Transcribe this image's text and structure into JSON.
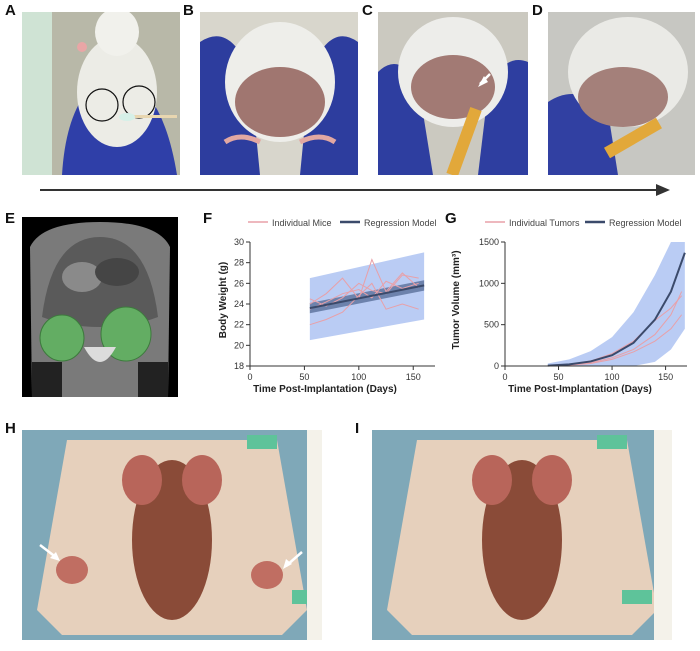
{
  "figure": {
    "panels": [
      "A",
      "B",
      "C",
      "D",
      "E",
      "F",
      "G",
      "H",
      "I"
    ]
  },
  "chart_data": [
    {
      "type": "line",
      "panel": "F",
      "xlabel": "Time Post-Implantation (Days)",
      "ylabel": "Body Weight (g)",
      "xlim": [
        0,
        170
      ],
      "ylim": [
        18,
        30
      ],
      "xticks": [
        0,
        50,
        100,
        150
      ],
      "yticks": [
        18,
        20,
        22,
        24,
        26,
        28,
        30
      ],
      "legend": [
        "Individual Mice",
        "Regression Model"
      ],
      "legend_position": "top",
      "colors": {
        "individual": "#e8a0a8",
        "regression": "#3b4a6b",
        "band": "#9db7f0",
        "ci": "#5a6f9a"
      },
      "series": [
        {
          "name": "Individual Mice",
          "x": [
            55,
            70,
            85,
            100,
            112,
            125,
            140,
            155
          ],
          "y": [
            24.0,
            25.0,
            26.5,
            24.5,
            28.3,
            25.2,
            27.0,
            25.6
          ]
        },
        {
          "name": "Individual Mice",
          "x": [
            55,
            70,
            85,
            100,
            112,
            125,
            140,
            155
          ],
          "y": [
            22.0,
            22.5,
            23.2,
            24.8,
            26.0,
            23.5,
            24.0,
            23.5
          ]
        },
        {
          "name": "Individual Mice",
          "x": [
            55,
            70,
            85,
            100,
            112,
            125,
            140,
            155
          ],
          "y": [
            23.5,
            24.2,
            25.0,
            25.4,
            24.6,
            26.2,
            25.5,
            26.0
          ]
        },
        {
          "name": "Individual Mice",
          "x": [
            55,
            70,
            85,
            100,
            112,
            125,
            140,
            155
          ],
          "y": [
            24.5,
            23.8,
            24.6,
            26.0,
            25.3,
            25.0,
            26.8,
            26.5
          ]
        }
      ],
      "regression": {
        "x": [
          55,
          160
        ],
        "y": [
          23.6,
          25.8
        ]
      },
      "prediction_band": {
        "x": [
          55,
          160
        ],
        "lower": [
          20.5,
          22.5
        ],
        "upper": [
          26.5,
          29.0
        ]
      },
      "confidence_band": {
        "x": [
          55,
          160
        ],
        "lower": [
          23.1,
          25.3
        ],
        "upper": [
          24.1,
          26.3
        ]
      }
    },
    {
      "type": "line",
      "panel": "G",
      "xlabel": "Time Post-Implantation (Days)",
      "ylabel": "Tumor Volume (mm³)",
      "xlim": [
        0,
        170
      ],
      "ylim": [
        0,
        1500
      ],
      "xticks": [
        0,
        50,
        100,
        150
      ],
      "yticks": [
        0,
        500,
        1000,
        1500
      ],
      "legend": [
        "Individual Tumors",
        "Regression Model"
      ],
      "legend_position": "top",
      "colors": {
        "individual": "#e8a0a8",
        "regression": "#3b4a6b",
        "band": "#9db7f0"
      },
      "series": [
        {
          "name": "Individual Tumors",
          "x": [
            40,
            60,
            80,
            100,
            120,
            140,
            155,
            165
          ],
          "y": [
            5,
            15,
            40,
            100,
            200,
            380,
            620,
            900
          ]
        },
        {
          "name": "Individual Tumors",
          "x": [
            40,
            60,
            80,
            100,
            120,
            140,
            155,
            165
          ],
          "y": [
            5,
            10,
            30,
            80,
            170,
            300,
            450,
            620
          ]
        },
        {
          "name": "Individual Tumors",
          "x": [
            40,
            60,
            80,
            100,
            120,
            140,
            155,
            165
          ],
          "y": [
            5,
            20,
            60,
            150,
            300,
            550,
            700,
            850
          ]
        }
      ],
      "regression": {
        "x": [
          40,
          60,
          80,
          100,
          120,
          140,
          155,
          168
        ],
        "y": [
          5,
          20,
          55,
          130,
          280,
          560,
          900,
          1370
        ]
      },
      "prediction_band": {
        "x": [
          40,
          60,
          80,
          100,
          120,
          140,
          155,
          168
        ],
        "lower": [
          0,
          0,
          0,
          0,
          0,
          50,
          200,
          450
        ],
        "upper": [
          30,
          80,
          180,
          350,
          650,
          1100,
          1500,
          1500
        ]
      }
    }
  ]
}
